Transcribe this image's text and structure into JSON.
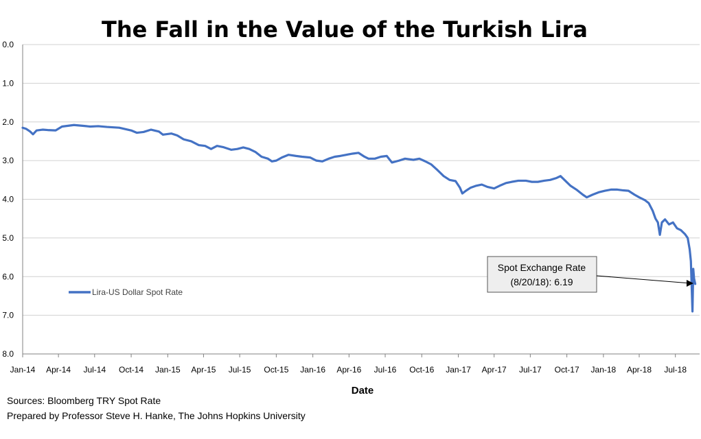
{
  "chart_data": {
    "type": "line",
    "title": "The Fall in the Value of the Turkish Lira",
    "xlabel": "Date",
    "ylabel": "",
    "ylim": [
      0,
      8
    ],
    "y_inverted": true,
    "y_ticks": [
      "0.0",
      "1.0",
      "2.0",
      "3.0",
      "4.0",
      "5.0",
      "6.0",
      "7.0",
      "8.0"
    ],
    "x_ticks": [
      "Jan-14",
      "Apr-14",
      "Jul-14",
      "Oct-14",
      "Jan-15",
      "Apr-15",
      "Jul-15",
      "Oct-15",
      "Jan-16",
      "Apr-16",
      "Jul-16",
      "Oct-16",
      "Jan-17",
      "Apr-17",
      "Jul-17",
      "Oct-17",
      "Jan-18",
      "Apr-18",
      "Jul-18"
    ],
    "xlim": [
      "2014-01-01",
      "2018-08-31"
    ],
    "grid": true,
    "legend_position": "left-middle",
    "series": [
      {
        "name": "Lira-US Dollar Spot Rate",
        "color": "#4472C4",
        "points": [
          [
            "2014-01-01",
            2.15
          ],
          [
            "2014-01-10",
            2.18
          ],
          [
            "2014-01-20",
            2.25
          ],
          [
            "2014-01-27",
            2.32
          ],
          [
            "2014-02-05",
            2.22
          ],
          [
            "2014-02-20",
            2.2
          ],
          [
            "2014-03-05",
            2.21
          ],
          [
            "2014-03-25",
            2.22
          ],
          [
            "2014-04-10",
            2.12
          ],
          [
            "2014-04-25",
            2.1
          ],
          [
            "2014-05-10",
            2.08
          ],
          [
            "2014-06-01",
            2.1
          ],
          [
            "2014-06-20",
            2.12
          ],
          [
            "2014-07-10",
            2.11
          ],
          [
            "2014-08-01",
            2.13
          ],
          [
            "2014-09-01",
            2.15
          ],
          [
            "2014-10-01",
            2.22
          ],
          [
            "2014-10-15",
            2.28
          ],
          [
            "2014-11-01",
            2.26
          ],
          [
            "2014-11-20",
            2.2
          ],
          [
            "2014-12-10",
            2.25
          ],
          [
            "2014-12-20",
            2.33
          ],
          [
            "2015-01-10",
            2.3
          ],
          [
            "2015-01-25",
            2.35
          ],
          [
            "2015-02-10",
            2.45
          ],
          [
            "2015-03-01",
            2.5
          ],
          [
            "2015-03-20",
            2.6
          ],
          [
            "2015-04-05",
            2.62
          ],
          [
            "2015-04-20",
            2.7
          ],
          [
            "2015-05-05",
            2.62
          ],
          [
            "2015-05-20",
            2.65
          ],
          [
            "2015-06-10",
            2.72
          ],
          [
            "2015-06-25",
            2.7
          ],
          [
            "2015-07-10",
            2.66
          ],
          [
            "2015-07-25",
            2.7
          ],
          [
            "2015-08-10",
            2.78
          ],
          [
            "2015-08-25",
            2.9
          ],
          [
            "2015-09-10",
            2.95
          ],
          [
            "2015-09-20",
            3.02
          ],
          [
            "2015-10-01",
            3.0
          ],
          [
            "2015-10-15",
            2.92
          ],
          [
            "2015-11-01",
            2.85
          ],
          [
            "2015-11-20",
            2.88
          ],
          [
            "2015-12-05",
            2.9
          ],
          [
            "2015-12-25",
            2.92
          ],
          [
            "2016-01-10",
            3.0
          ],
          [
            "2016-01-25",
            3.02
          ],
          [
            "2016-02-10",
            2.95
          ],
          [
            "2016-02-25",
            2.9
          ],
          [
            "2016-03-10",
            2.88
          ],
          [
            "2016-03-25",
            2.85
          ],
          [
            "2016-04-10",
            2.82
          ],
          [
            "2016-04-25",
            2.8
          ],
          [
            "2016-05-10",
            2.9
          ],
          [
            "2016-05-20",
            2.95
          ],
          [
            "2016-06-05",
            2.95
          ],
          [
            "2016-06-20",
            2.9
          ],
          [
            "2016-07-05",
            2.88
          ],
          [
            "2016-07-18",
            3.05
          ],
          [
            "2016-08-05",
            3.0
          ],
          [
            "2016-08-20",
            2.95
          ],
          [
            "2016-09-10",
            2.98
          ],
          [
            "2016-09-25",
            2.95
          ],
          [
            "2016-10-10",
            3.02
          ],
          [
            "2016-10-25",
            3.1
          ],
          [
            "2016-11-10",
            3.25
          ],
          [
            "2016-11-25",
            3.4
          ],
          [
            "2016-12-10",
            3.5
          ],
          [
            "2016-12-25",
            3.53
          ],
          [
            "2017-01-05",
            3.7
          ],
          [
            "2017-01-11",
            3.85
          ],
          [
            "2017-01-20",
            3.78
          ],
          [
            "2017-02-01",
            3.7
          ],
          [
            "2017-02-15",
            3.65
          ],
          [
            "2017-03-01",
            3.62
          ],
          [
            "2017-03-15",
            3.68
          ],
          [
            "2017-04-01",
            3.72
          ],
          [
            "2017-04-15",
            3.65
          ],
          [
            "2017-05-01",
            3.58
          ],
          [
            "2017-05-15",
            3.55
          ],
          [
            "2017-06-01",
            3.52
          ],
          [
            "2017-06-20",
            3.52
          ],
          [
            "2017-07-05",
            3.55
          ],
          [
            "2017-07-20",
            3.55
          ],
          [
            "2017-08-05",
            3.52
          ],
          [
            "2017-08-20",
            3.5
          ],
          [
            "2017-09-05",
            3.45
          ],
          [
            "2017-09-15",
            3.4
          ],
          [
            "2017-09-25",
            3.5
          ],
          [
            "2017-10-10",
            3.65
          ],
          [
            "2017-10-25",
            3.75
          ],
          [
            "2017-11-10",
            3.88
          ],
          [
            "2017-11-20",
            3.95
          ],
          [
            "2017-12-05",
            3.88
          ],
          [
            "2017-12-20",
            3.82
          ],
          [
            "2018-01-05",
            3.78
          ],
          [
            "2018-01-20",
            3.75
          ],
          [
            "2018-02-05",
            3.75
          ],
          [
            "2018-02-20",
            3.77
          ],
          [
            "2018-03-05",
            3.78
          ],
          [
            "2018-03-20",
            3.88
          ],
          [
            "2018-04-01",
            3.95
          ],
          [
            "2018-04-15",
            4.02
          ],
          [
            "2018-04-25",
            4.1
          ],
          [
            "2018-05-05",
            4.3
          ],
          [
            "2018-05-12",
            4.5
          ],
          [
            "2018-05-18",
            4.6
          ],
          [
            "2018-05-23",
            4.92
          ],
          [
            "2018-05-28",
            4.6
          ],
          [
            "2018-06-05",
            4.52
          ],
          [
            "2018-06-15",
            4.65
          ],
          [
            "2018-06-25",
            4.6
          ],
          [
            "2018-07-05",
            4.75
          ],
          [
            "2018-07-15",
            4.8
          ],
          [
            "2018-07-25",
            4.9
          ],
          [
            "2018-08-01",
            5.0
          ],
          [
            "2018-08-06",
            5.3
          ],
          [
            "2018-08-09",
            5.6
          ],
          [
            "2018-08-13",
            6.9
          ],
          [
            "2018-08-15",
            5.8
          ],
          [
            "2018-08-17",
            6.05
          ],
          [
            "2018-08-20",
            6.19
          ]
        ]
      }
    ],
    "annotation": {
      "line1": "Spot Exchange Rate",
      "line2": "(8/20/18): 6.19",
      "target": [
        "2018-08-20",
        6.19
      ]
    },
    "footer": {
      "sources": "Sources: Bloomberg TRY Spot Rate",
      "prepared_by": "Prepared by Professor Steve H. Hanke, The Johns Hopkins University"
    }
  }
}
